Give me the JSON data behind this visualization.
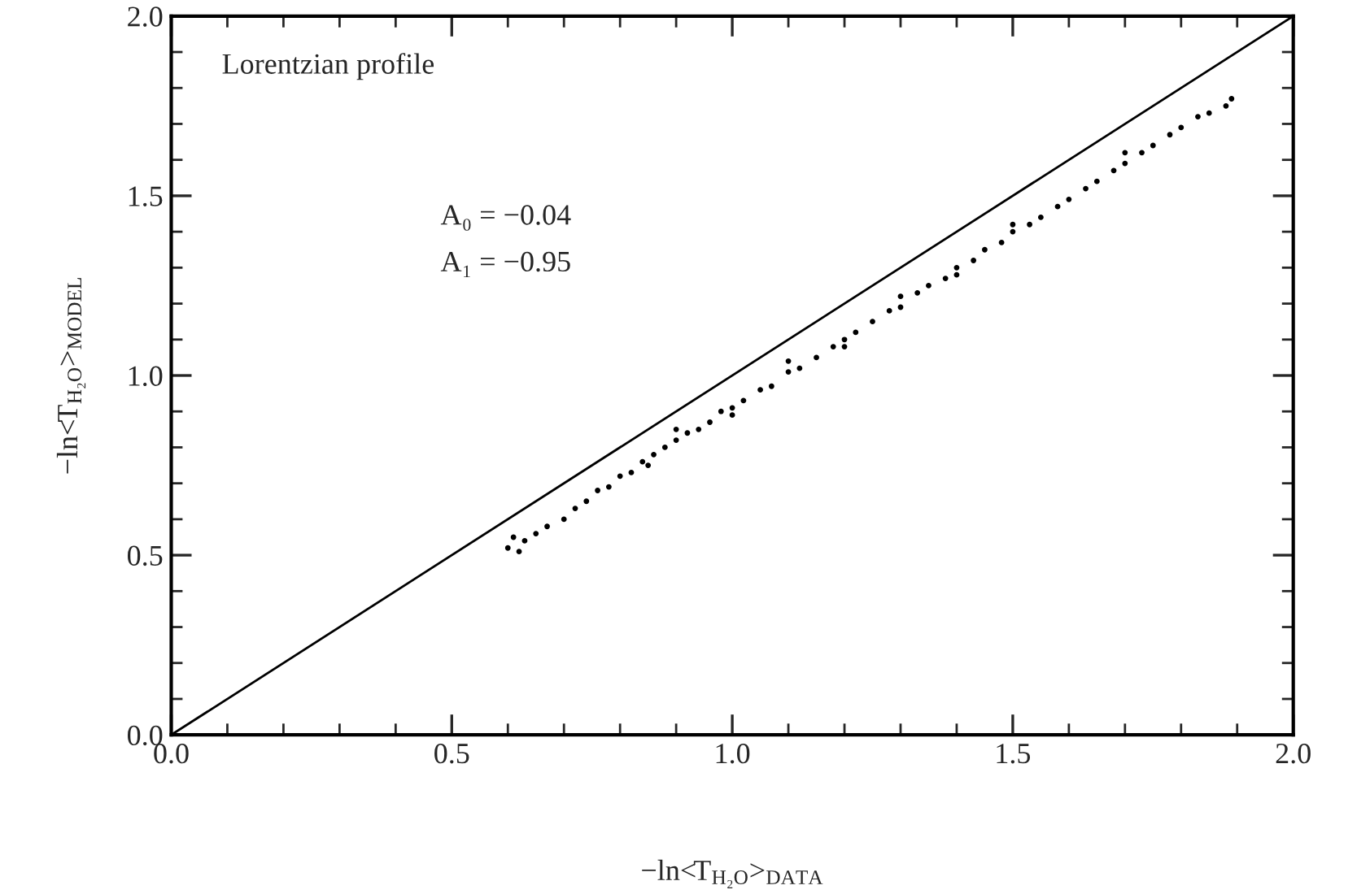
{
  "chart_data": {
    "type": "scatter",
    "xlabel": "−ln<T$_{H₂O}$>$_{DATA}$",
    "ylabel": "−ln<T$_{H₂O}$>$_{MODEL}$",
    "annotations": [
      "Lorentzian profile",
      "A₀ = −0.04",
      "A₁ = −0.95"
    ],
    "xlim": [
      0.0,
      2.0
    ],
    "ylim": [
      0.0,
      2.0
    ],
    "xticks": [
      {
        "value": 0,
        "label": "0.0"
      },
      0.5,
      {
        "value": 1,
        "label": "1.0"
      },
      1.5,
      {
        "value": 2,
        "label": "2.0"
      }
    ],
    "yticks": [
      {
        "value": 0,
        "label": "0.0"
      },
      0.5,
      {
        "value": 1,
        "label": "1.0"
      },
      1.5,
      {
        "value": 2,
        "label": "2.0"
      }
    ],
    "grid": false,
    "legend": false,
    "series": [
      {
        "color": "#000000",
        "marker": "circle",
        "x": [
          0.6,
          0.61,
          0.62,
          0.63,
          0.65,
          0.67,
          0.7,
          0.72,
          0.74,
          0.76,
          0.78,
          0.8,
          0.82,
          0.84,
          0.86,
          0.88,
          0.9,
          0.92,
          0.94,
          0.96,
          0.98,
          1.0,
          1.02,
          1.05,
          1.07,
          1.1,
          1.12,
          1.15,
          1.18,
          1.2,
          1.22,
          1.25,
          1.28,
          1.3,
          1.33,
          1.35,
          1.38,
          1.4,
          1.43,
          1.45,
          1.48,
          1.5,
          1.53,
          1.55,
          1.58,
          1.6,
          1.63,
          1.65,
          1.68,
          1.7,
          1.73,
          1.75,
          1.78,
          1.8,
          1.83,
          1.85,
          1.88,
          1.89,
          0.85,
          1.0,
          1.2,
          1.4,
          0.9,
          1.1,
          1.3,
          1.5,
          1.7
        ],
        "values": [
          0.52,
          0.55,
          0.51,
          0.54,
          0.56,
          0.58,
          0.6,
          0.63,
          0.65,
          0.68,
          0.69,
          0.72,
          0.73,
          0.76,
          0.78,
          0.8,
          0.82,
          0.84,
          0.85,
          0.87,
          0.9,
          0.91,
          0.93,
          0.96,
          0.97,
          1.01,
          1.02,
          1.05,
          1.08,
          1.1,
          1.12,
          1.15,
          1.18,
          1.19,
          1.23,
          1.25,
          1.27,
          1.3,
          1.32,
          1.35,
          1.37,
          1.4,
          1.42,
          1.44,
          1.47,
          1.49,
          1.52,
          1.54,
          1.57,
          1.59,
          1.62,
          1.64,
          1.67,
          1.69,
          1.72,
          1.73,
          1.75,
          1.77,
          0.75,
          0.89,
          1.08,
          1.28,
          0.85,
          1.04,
          1.22,
          1.42,
          1.62
        ]
      },
      {
        "type": "line",
        "color": "#000000",
        "line_style": "solid",
        "x": [
          0.0,
          2.0
        ],
        "values": [
          0.0,
          2.0
        ]
      }
    ]
  }
}
